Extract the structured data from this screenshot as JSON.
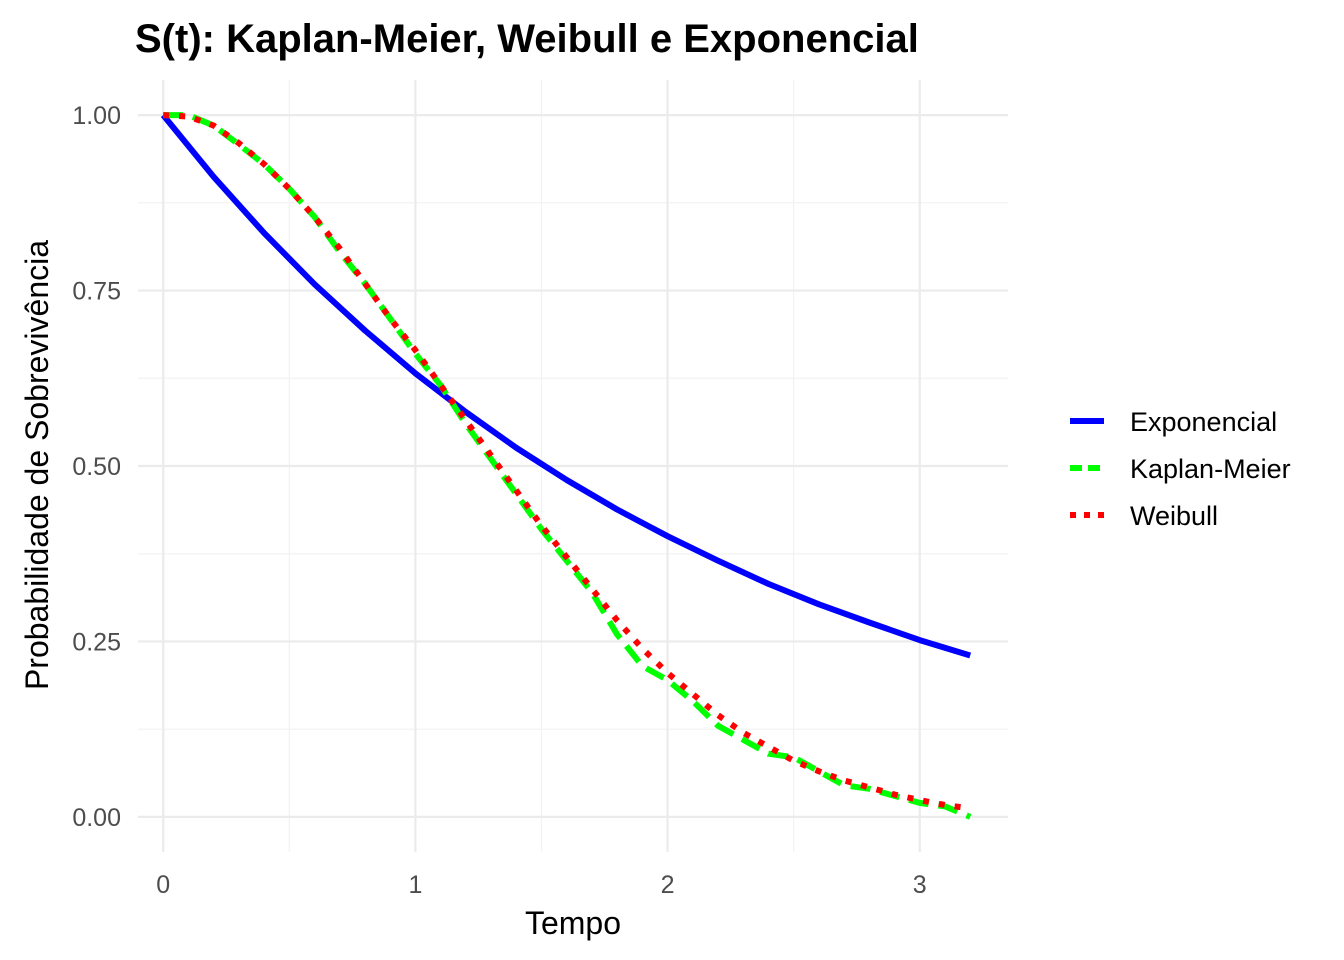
{
  "chart_data": {
    "type": "line",
    "title": "S(t): Kaplan-Meier, Weibull e Exponencial",
    "xlabel": "Tempo",
    "ylabel": "Probabilidade de Sobrevivência",
    "xlim": [
      -0.1,
      3.35
    ],
    "ylim": [
      -0.05,
      1.05
    ],
    "x_ticks": [
      0,
      1,
      2,
      3
    ],
    "x_tick_labels": [
      "0",
      "1",
      "2",
      "3"
    ],
    "y_ticks": [
      0,
      0.25,
      0.5,
      0.75,
      1
    ],
    "y_tick_labels": [
      "0.00",
      "0.25",
      "0.50",
      "0.75",
      "1.00"
    ],
    "grid": true,
    "legend_position": "right",
    "series": [
      {
        "name": "Exponencial",
        "color": "#0000ff",
        "dash": "solid",
        "x": [
          0,
          0.2,
          0.4,
          0.6,
          0.8,
          1.0,
          1.2,
          1.4,
          1.6,
          1.8,
          2.0,
          2.2,
          2.4,
          2.6,
          2.8,
          3.0,
          3.2
        ],
        "y": [
          1.0,
          0.912,
          0.832,
          0.759,
          0.693,
          0.632,
          0.577,
          0.526,
          0.48,
          0.438,
          0.4,
          0.365,
          0.332,
          0.303,
          0.277,
          0.252,
          0.23
        ]
      },
      {
        "name": "Kaplan-Meier",
        "color": "#00ff00",
        "dash": "dashed",
        "x": [
          0.0,
          0.1,
          0.2,
          0.3,
          0.4,
          0.5,
          0.6,
          0.7,
          0.8,
          0.9,
          1.0,
          1.1,
          1.2,
          1.3,
          1.4,
          1.5,
          1.6,
          1.7,
          1.8,
          1.9,
          2.0,
          2.1,
          2.2,
          2.3,
          2.4,
          2.5,
          2.6,
          2.7,
          2.8,
          2.9,
          3.0,
          3.1,
          3.2
        ],
        "y": [
          1.0,
          1.0,
          0.985,
          0.958,
          0.93,
          0.895,
          0.855,
          0.805,
          0.76,
          0.71,
          0.66,
          0.615,
          0.56,
          0.51,
          0.46,
          0.41,
          0.365,
          0.32,
          0.26,
          0.215,
          0.195,
          0.165,
          0.13,
          0.11,
          0.09,
          0.085,
          0.065,
          0.045,
          0.04,
          0.03,
          0.02,
          0.015,
          0.0
        ]
      },
      {
        "name": "Weibull",
        "color": "#ff0000",
        "dash": "dotted",
        "x": [
          0.0,
          0.1,
          0.2,
          0.3,
          0.4,
          0.5,
          0.6,
          0.7,
          0.8,
          0.9,
          1.0,
          1.1,
          1.2,
          1.3,
          1.4,
          1.5,
          1.6,
          1.7,
          1.8,
          1.9,
          2.0,
          2.1,
          2.2,
          2.3,
          2.4,
          2.5,
          2.6,
          2.7,
          2.8,
          2.9,
          3.0,
          3.1,
          3.2
        ],
        "y": [
          1.0,
          0.998,
          0.985,
          0.96,
          0.93,
          0.895,
          0.855,
          0.81,
          0.76,
          0.71,
          0.665,
          0.615,
          0.565,
          0.515,
          0.465,
          0.415,
          0.37,
          0.325,
          0.28,
          0.24,
          0.205,
          0.175,
          0.145,
          0.12,
          0.1,
          0.08,
          0.065,
          0.052,
          0.042,
          0.032,
          0.024,
          0.017,
          0.012
        ]
      }
    ]
  }
}
